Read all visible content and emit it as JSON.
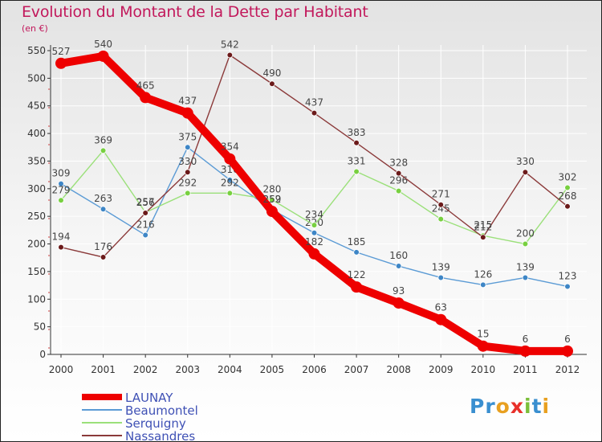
{
  "header": {
    "title": "Evolution du Montant de la Dette par Habitant",
    "unit": "(en €)"
  },
  "colors": {
    "title": "#c2185b",
    "legend_text": "#3f51b5",
    "axis": "#333333",
    "grid": "#ffffff",
    "label": "#444444"
  },
  "logo": {
    "text": "Proxiti",
    "letter_colors": [
      "#3a8fd0",
      "#3a8fd0",
      "#e8a020",
      "#e8302a",
      "#7bbf3a",
      "#3a8fd0",
      "#e8a020"
    ]
  },
  "chart_data": {
    "type": "line",
    "x": [
      "2000",
      "2001",
      "2002",
      "2003",
      "2004",
      "2005",
      "2006",
      "2007",
      "2008",
      "2009",
      "2010",
      "2011",
      "2012"
    ],
    "ylim": [
      0,
      550
    ],
    "yticks": [
      0,
      50,
      100,
      150,
      200,
      250,
      300,
      350,
      400,
      450,
      500,
      550
    ],
    "grid": true,
    "legend": "bottom-left",
    "series": [
      {
        "name": "LAUNAY",
        "color": "#ee0000",
        "bold": true,
        "values": [
          527,
          540,
          465,
          437,
          354,
          259,
          182,
          122,
          93,
          63,
          15,
          6,
          6
        ],
        "labels": [
          "527",
          "540",
          "465",
          "437",
          "354",
          "259",
          "182",
          "122",
          "93",
          "63",
          "15",
          "6",
          "6"
        ]
      },
      {
        "name": "Beaumontel",
        "color": "#5b9bd5",
        "dot": "#3e86c6",
        "values": [
          309,
          263,
          216,
          375,
          316,
          262,
          220,
          185,
          160,
          139,
          126,
          139,
          123
        ],
        "labels": [
          "309",
          "263",
          "216",
          "375",
          "316",
          "262",
          "220",
          "185",
          "160",
          "139",
          "126",
          "139",
          "123"
        ]
      },
      {
        "name": "Serquigny",
        "color": "#9be07a",
        "dot": "#78d040",
        "values": [
          279,
          369,
          257,
          292,
          292,
          280,
          234,
          331,
          296,
          245,
          215,
          200,
          302
        ],
        "labels": [
          "279",
          "369",
          "257",
          "292",
          "292",
          "280",
          "234",
          "331",
          "296",
          "245",
          "215",
          "200",
          "302"
        ]
      },
      {
        "name": "Nassandres",
        "color": "#8b3a3a",
        "dot": "#6b1a1a",
        "values": [
          194,
          176,
          256,
          330,
          542,
          490,
          437,
          383,
          328,
          271,
          212,
          330,
          268
        ],
        "labels": [
          "194",
          "176",
          "256",
          "330",
          "542",
          "490",
          "437",
          "383",
          "328",
          "271",
          "212",
          "330",
          "268"
        ]
      }
    ]
  }
}
